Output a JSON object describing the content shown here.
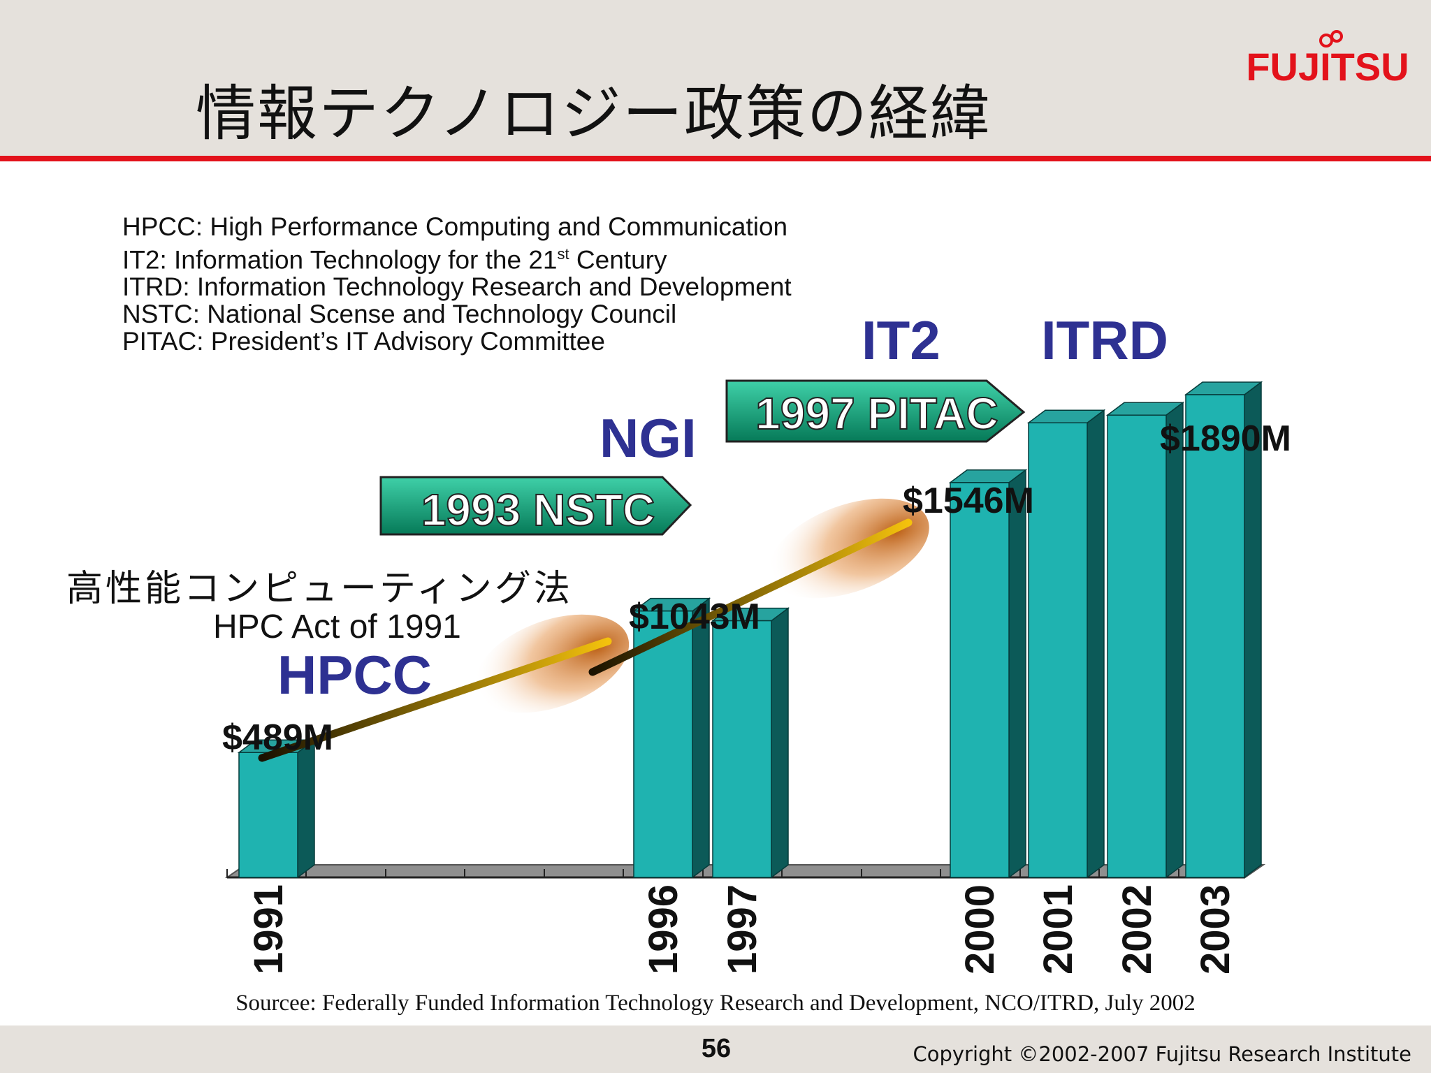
{
  "title": "情報テクノロジー政策の経緯",
  "logo": {
    "text": "FUJITSU",
    "color": "#e3121b"
  },
  "abbreviations": {
    "hpcc": "HPCC: High Performance Computing and Communication",
    "it2_prefix": "IT2: Information Technology for the 21",
    "it2_sup": "st",
    "it2_suffix": " Century",
    "itrd": "ITRD: Information Technology Research and Development",
    "nstc": "NSTC: National Scense and Technology Council",
    "pitac": "PITAC: President’s IT Advisory Committee"
  },
  "programs": {
    "hpcc": "HPCC",
    "ngi": "NGI",
    "it2": "IT2",
    "itrd": "ITRD"
  },
  "law": {
    "japanese": "高性能コンピューティング法",
    "english": "HPC Act of 1991"
  },
  "arrows": {
    "nstc": "1993 NSTC",
    "pitac": "1997 PITAC"
  },
  "chart_data": {
    "type": "bar",
    "categories": [
      "1991",
      "1996",
      "1997",
      "2000",
      "2001",
      "2002",
      "2003"
    ],
    "values": [
      489,
      1043,
      1005,
      1546,
      1780,
      1810,
      1890
    ],
    "unit": "$M",
    "value_labels": [
      {
        "category": "1991",
        "text": "$489M"
      },
      {
        "category": "1996",
        "text": "$1043M"
      },
      {
        "category": "2000",
        "text": "$1546M"
      },
      {
        "category": "2003",
        "text": "$1890M"
      }
    ],
    "xlabel": "",
    "ylabel": "",
    "grid": false,
    "colors": {
      "bar_front": "#1fb3b0",
      "bar_side": "#0c5a58",
      "bar_top": "#27a39f",
      "floor": "#8f8f8f",
      "arrow": "#0e8f6c",
      "trend": "#f2b705"
    }
  },
  "source": "Sourcee: Federally Funded Information Technology Research and Development, NCO/ITRD, July 2002",
  "page_number": "56",
  "copyright": "Copyright ©2002-2007 Fujitsu Research Institute"
}
